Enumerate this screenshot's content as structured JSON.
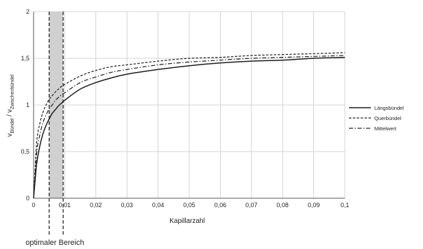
{
  "chart_data": {
    "type": "line",
    "title": "",
    "xlabel": "Kapillarzahl",
    "ylabel_main": "v",
    "ylabel_sub1": "Bündel",
    "ylabel_slash": " / v",
    "ylabel_sub2": "Zwischenbündel",
    "xlim": [
      0,
      0.1
    ],
    "ylim": [
      0,
      2
    ],
    "x_ticks": [
      0,
      0.01,
      0.02,
      0.03,
      0.04,
      0.05,
      0.06,
      0.07,
      0.08,
      0.09,
      0.1
    ],
    "x_tick_labels": [
      "0",
      "0,01",
      "0,02",
      "0,03",
      "0,04",
      "0,05",
      "0,06",
      "0,07",
      "0,08",
      "0,09",
      "0,1"
    ],
    "y_ticks": [
      0,
      0.5,
      1,
      1.5,
      2
    ],
    "y_tick_labels": [
      "0",
      "0,5",
      "1",
      "1,5",
      "2"
    ],
    "grid": true,
    "legend_position": "right",
    "series": [
      {
        "name": "Längsbündel",
        "style": "solid",
        "color": "#1a1a1a",
        "x": [
          0,
          0.001,
          0.002,
          0.003,
          0.004,
          0.005,
          0.006,
          0.007,
          0.008,
          0.009,
          0.01,
          0.015,
          0.02,
          0.025,
          0.03,
          0.04,
          0.05,
          0.06,
          0.07,
          0.08,
          0.09,
          0.1
        ],
        "y": [
          0,
          0.37,
          0.56,
          0.69,
          0.78,
          0.85,
          0.91,
          0.95,
          0.99,
          1.02,
          1.05,
          1.17,
          1.24,
          1.29,
          1.33,
          1.38,
          1.42,
          1.45,
          1.47,
          1.48,
          1.5,
          1.51
        ]
      },
      {
        "name": "Querbündel",
        "style": "dashed",
        "color": "#1a1a1a",
        "x": [
          0,
          0.001,
          0.002,
          0.003,
          0.004,
          0.005,
          0.006,
          0.007,
          0.008,
          0.009,
          0.01,
          0.015,
          0.02,
          0.025,
          0.03,
          0.04,
          0.05,
          0.06,
          0.07,
          0.08,
          0.09,
          0.1
        ],
        "y": [
          0,
          0.6,
          0.8,
          0.92,
          1.0,
          1.06,
          1.1,
          1.14,
          1.17,
          1.2,
          1.22,
          1.31,
          1.37,
          1.41,
          1.43,
          1.47,
          1.5,
          1.51,
          1.53,
          1.54,
          1.55,
          1.56
        ]
      },
      {
        "name": "Mittelwert",
        "style": "dashdot",
        "color": "#1a1a1a",
        "x": [
          0,
          0.001,
          0.002,
          0.003,
          0.004,
          0.005,
          0.006,
          0.007,
          0.008,
          0.009,
          0.01,
          0.015,
          0.02,
          0.025,
          0.03,
          0.04,
          0.05,
          0.06,
          0.07,
          0.08,
          0.09,
          0.1
        ],
        "y": [
          0,
          0.49,
          0.68,
          0.81,
          0.89,
          0.96,
          1.0,
          1.05,
          1.08,
          1.11,
          1.13,
          1.24,
          1.3,
          1.35,
          1.38,
          1.43,
          1.46,
          1.48,
          1.5,
          1.51,
          1.52,
          1.53
        ]
      }
    ],
    "highlight_region": {
      "x_range": [
        0.005,
        0.0095
      ],
      "label": "optimaler Bereich",
      "fill": "#d0d0d0"
    }
  }
}
